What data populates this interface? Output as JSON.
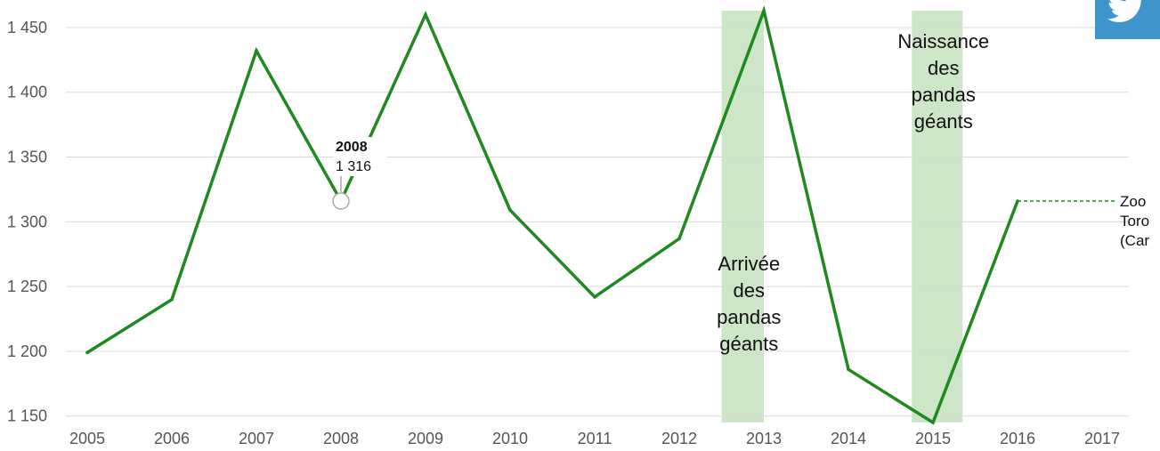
{
  "share": {
    "icon": "twitter-icon",
    "color": "#3d95cc"
  },
  "chart_data": {
    "type": "line",
    "x": [
      2005,
      2006,
      2007,
      2008,
      2009,
      2010,
      2011,
      2012,
      2013,
      2014,
      2015,
      2016
    ],
    "series": [
      {
        "values": [
          1199,
          1240,
          1432,
          1316,
          1460,
          1309,
          1242,
          1287,
          1463,
          1186,
          1145,
          1316
        ],
        "color": "#1f8a1f"
      }
    ],
    "x_ticks": [
      "2005",
      "2006",
      "2007",
      "2008",
      "2009",
      "2010",
      "2011",
      "2012",
      "2013",
      "2014",
      "2015",
      "2016",
      "2017"
    ],
    "y_ticks": [
      {
        "value": 1150,
        "label": "1 150"
      },
      {
        "value": 1200,
        "label": "1 200"
      },
      {
        "value": 1250,
        "label": "1 250"
      },
      {
        "value": 1300,
        "label": "1 300"
      },
      {
        "value": 1350,
        "label": "1 350"
      },
      {
        "value": 1400,
        "label": "1 400"
      },
      {
        "value": 1450,
        "label": "1 450"
      }
    ],
    "xlim": [
      2005,
      2017
    ],
    "ylim": [
      1145,
      1463
    ],
    "grid": true,
    "bands": [
      {
        "from": 2012.5,
        "to": 2013.0,
        "lines": [
          "Arrivée",
          "des",
          "pandas",
          "géants"
        ],
        "label_position": "bottom",
        "color": "#cde6c8"
      },
      {
        "from": 2014.75,
        "to": 2015.35,
        "lines": [
          "Naissance",
          "des",
          "pandas",
          "géants"
        ],
        "label_position": "top",
        "color": "#cde6c8"
      }
    ],
    "tooltip": {
      "x": 2008,
      "year": "2008",
      "value": "1 316"
    },
    "end_label": {
      "value": 1316,
      "lines": [
        "Zoo",
        "Toro",
        "(Car"
      ]
    }
  }
}
